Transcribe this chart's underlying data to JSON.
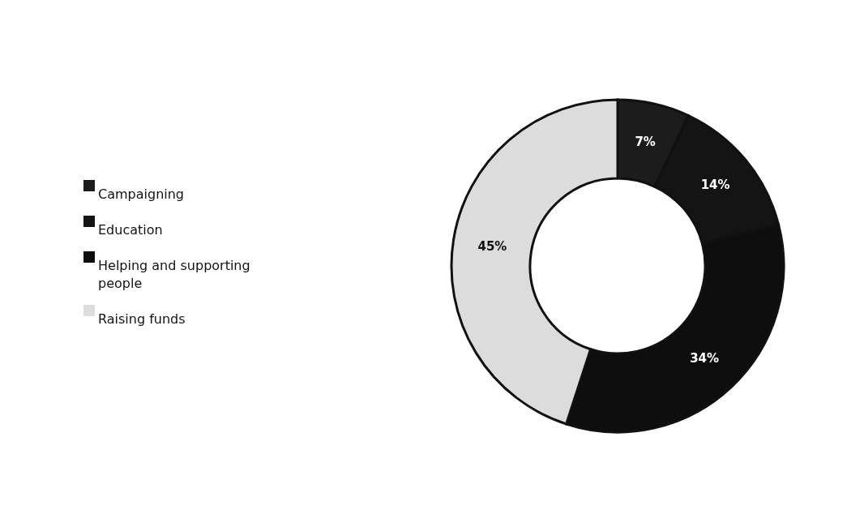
{
  "chart_data": {
    "type": "donut",
    "categories": [
      "Campaigning",
      "Education",
      "Helping and supporting people",
      "Raising funds"
    ],
    "values": [
      7,
      14,
      34,
      45
    ],
    "colors": [
      "#1c1c1c",
      "#141414",
      "#0e0e0e",
      "#dcdcdc"
    ],
    "value_labels": [
      "7%",
      "14%",
      "34%",
      "45%"
    ],
    "legend": "left"
  }
}
